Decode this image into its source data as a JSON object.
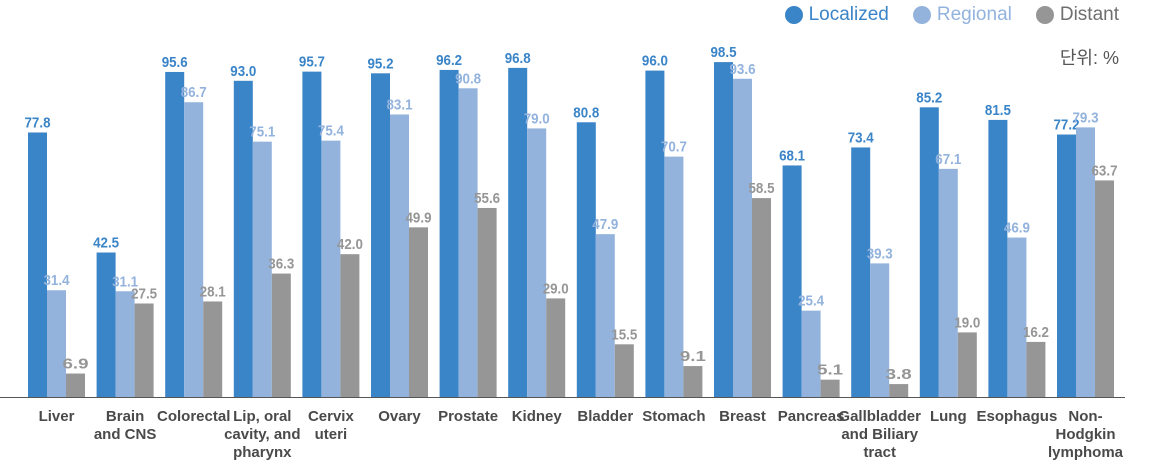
{
  "colors": {
    "localized": "#3a84c8",
    "regional": "#93b3dd",
    "distant": "#969696",
    "axis": "#555555"
  },
  "legend": [
    {
      "name": "Localized",
      "color": "#3a84c8"
    },
    {
      "name": "Regional",
      "color": "#93b3dd"
    },
    {
      "name": "Distant",
      "color": "#969696"
    }
  ],
  "unit_label": "단위: %",
  "chart_data": {
    "type": "bar",
    "title": "",
    "xlabel": "",
    "ylabel": "",
    "ylim": [
      0,
      100
    ],
    "grid": false,
    "legend_position": "top-right",
    "categories": [
      [
        "Liver"
      ],
      [
        "Brain",
        "and CNS"
      ],
      [
        "Colorectal"
      ],
      [
        "Lip, oral",
        "cavity, and",
        "pharynx"
      ],
      [
        "Cervix",
        "uteri"
      ],
      [
        "Ovary"
      ],
      [
        "Prostate"
      ],
      [
        "Kidney"
      ],
      [
        "Bladder"
      ],
      [
        "Stomach"
      ],
      [
        "Breast"
      ],
      [
        "Pancreas"
      ],
      [
        "Gallbladder",
        "and Biliary",
        "tract"
      ],
      [
        "Lung"
      ],
      [
        "Esophagus"
      ],
      [
        "Non-",
        "Hodgkin",
        "lymphoma"
      ]
    ],
    "series": [
      {
        "name": "Localized",
        "values": [
          77.8,
          42.5,
          95.6,
          93.0,
          95.7,
          95.2,
          96.2,
          96.8,
          80.8,
          96.0,
          98.5,
          68.1,
          73.4,
          85.2,
          81.5,
          77.2
        ],
        "labels": [
          "77.8",
          "42.5",
          "95.6",
          "93.0",
          "95.7",
          "95.2",
          "96.2",
          "96.8",
          "80.8",
          "96.0",
          "98.5",
          "68.1",
          "73.4",
          "85.2",
          "81.5",
          "77.2"
        ]
      },
      {
        "name": "Regional",
        "values": [
          31.4,
          31.1,
          86.7,
          75.1,
          75.4,
          83.1,
          90.8,
          79.0,
          47.9,
          70.7,
          93.6,
          25.4,
          39.3,
          67.1,
          46.9,
          79.3
        ],
        "labels": [
          "31.4",
          "31.1",
          "86.7",
          "75.1",
          "75.4",
          "83.1",
          "90.8",
          "79.0",
          "47.9",
          "70.7",
          "93.6",
          "25.4",
          "39.3",
          "67.1",
          "46.9",
          "79.3"
        ]
      },
      {
        "name": "Distant",
        "values": [
          6.9,
          27.5,
          28.1,
          36.3,
          42.0,
          49.9,
          55.6,
          29.0,
          15.5,
          9.1,
          58.5,
          5.1,
          3.8,
          19.0,
          16.2,
          63.7
        ],
        "labels": [
          "6.9",
          "27.5",
          "28.1",
          "36.3",
          "42.0",
          "49.9",
          "55.6",
          "29.0",
          "15.5",
          "9.1",
          "58.5",
          "5.1",
          "3.8",
          "19.0",
          "16.2",
          "63.7"
        ]
      }
    ]
  }
}
